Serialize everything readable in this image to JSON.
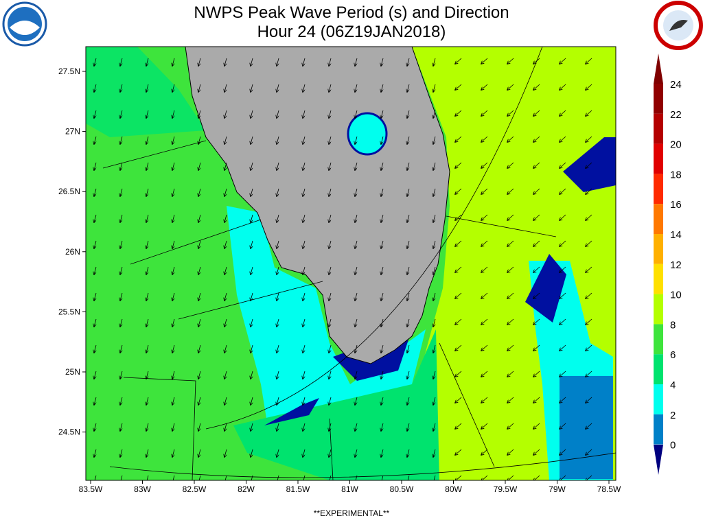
{
  "header": {
    "title": "NWPS Peak Wave Period (s) and Direction",
    "subtitle": "Hour 24 (06Z19JAN2018)"
  },
  "latitude_labels": [
    "27.5N",
    "27N",
    "26.5N",
    "26N",
    "25.5N",
    "25N",
    "24.5N"
  ],
  "longitude_labels": [
    "83.5W",
    "83W",
    "82.5W",
    "82W",
    "81.5W",
    "81W",
    "80.5W",
    "80W",
    "79.5W",
    "79W",
    "78.5W"
  ],
  "colorbar": {
    "labels": [
      "24",
      "22",
      "20",
      "18",
      "16",
      "14",
      "12",
      "10",
      "8",
      "6",
      "4",
      "2",
      "0"
    ]
  },
  "footer": "**EXPERIMENTAL**"
}
